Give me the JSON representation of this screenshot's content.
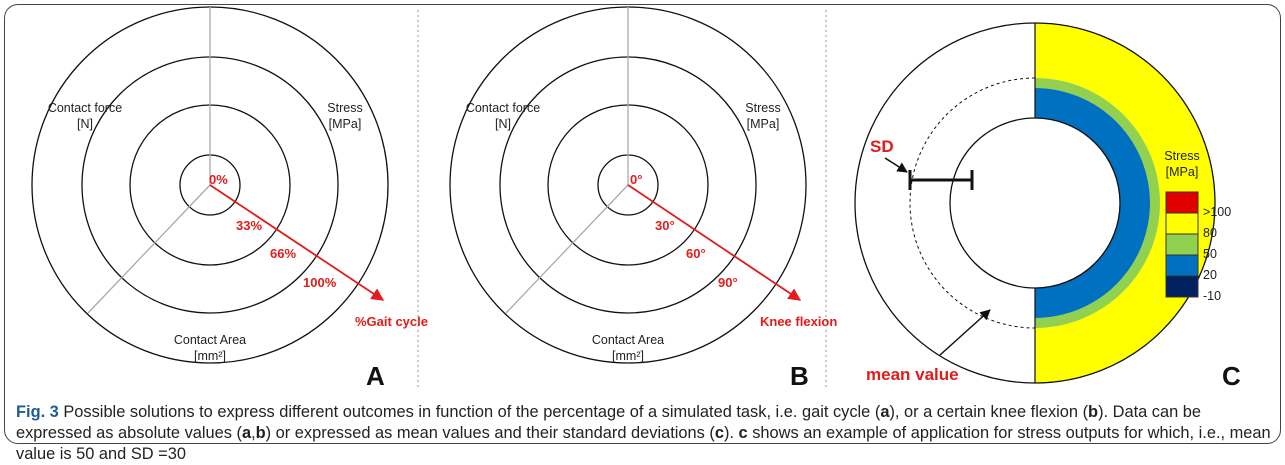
{
  "panel_a": {
    "left_label": [
      "Contact force",
      "[N]"
    ],
    "right_label": [
      "Stress",
      "[MPa]"
    ],
    "bottom_label": [
      "Contact Area",
      "[mm²]"
    ],
    "ticks": [
      "0%",
      "33%",
      "66%",
      "100%"
    ],
    "axis_label": "%Gait cycle",
    "letter": "A"
  },
  "panel_b": {
    "left_label": [
      "Contact force",
      "[N]"
    ],
    "right_label": [
      "Stress",
      "[MPa]"
    ],
    "bottom_label": [
      "Contact Area",
      "[mm²]"
    ],
    "ticks": [
      "0°",
      "30°",
      "60°",
      "90°"
    ],
    "axis_label": "Knee flexion",
    "letter": "B"
  },
  "panel_c": {
    "sd_label": "SD",
    "mean_label": "mean value",
    "legend_title": [
      "Stress",
      "[MPa]"
    ],
    "legend_labels": [
      ">100",
      "80",
      "50",
      "20",
      "-10"
    ],
    "letter": "C"
  },
  "caption": {
    "parts": [
      "Fig. 3",
      " Possible solutions to express different outcomes in function of the percentage of a simulated task, i.e. gait cycle (",
      "a",
      "), or a certain knee flexion (",
      "b",
      "). Data can be expressed as absolute values (",
      "a",
      ",",
      "b",
      ") or expressed as mean values and their standard deviations (",
      "c",
      "). ",
      "c",
      " shows an example of application for stress outputs for which, i.e., mean value is 50 and SD =30"
    ]
  }
}
